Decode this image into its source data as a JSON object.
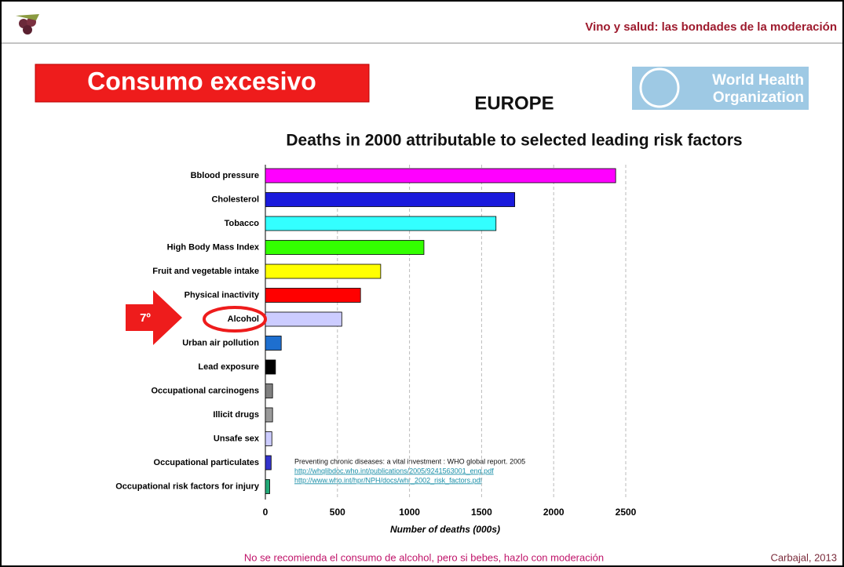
{
  "slide": {
    "header": "Vino y salud: las bondades de la moderación",
    "banner": "Consumo excesivo",
    "who_logo": [
      "World Health",
      "Organization"
    ],
    "annotation": "7º",
    "source": {
      "text": "Preventing chronic diseases: a vital investment : WHO global report. 2005",
      "links": [
        "http://whqlibdoc.who.int/publications/2005/9241563001_eng.pdf",
        "http://www.who.int/hpr/NPH/docs/whr_2002_risk_factors.pdf"
      ]
    },
    "footer": "No se recomienda el consumo de alcohol, pero si bebes, hazlo con moderación",
    "credit": "Carbajal, 2013"
  },
  "chart_data": {
    "type": "hbar",
    "title": "EUROPE",
    "subtitle": "Deaths in 2000 attributable to selected leading risk factors",
    "x_label": "Number of deaths (000s)",
    "categories": [
      "Bblood pressure",
      "Cholesterol",
      "Tobacco",
      "High Body Mass Index",
      "Fruit and vegetable intake",
      "Physical inactivity",
      "Alcohol",
      "Urban air pollution",
      "Lead exposure",
      "Occupational carcinogens",
      "Illicit drugs",
      "Unsafe sex",
      "Occupational particulates",
      "Occupational risk factors for injury"
    ],
    "values": [
      2430,
      1730,
      1600,
      1100,
      800,
      660,
      530,
      110,
      70,
      50,
      50,
      45,
      40,
      30
    ],
    "colors": [
      "#ff00ff",
      "#1a1adc",
      "#33ffff",
      "#33ff00",
      "#ffff00",
      "#ff0000",
      "#ccccff",
      "#1e6fcf",
      "#000000",
      "#808080",
      "#9a9a9a",
      "#ccccff",
      "#3333cc",
      "#22aa77"
    ],
    "xlim": [
      0,
      2500
    ],
    "xticks": [
      0,
      500,
      1000,
      1500,
      2000,
      2500
    ],
    "grid": true
  }
}
